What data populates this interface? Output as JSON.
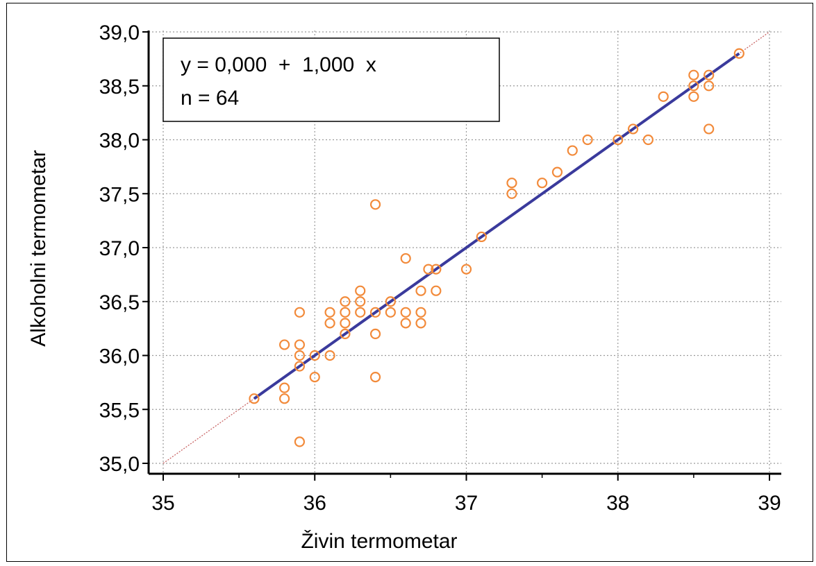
{
  "chart_data": {
    "type": "scatter",
    "xlabel": "Živin  termometar",
    "ylabel": "Alkoholni  termometar",
    "xlim": [
      35,
      39
    ],
    "ylim": [
      35.0,
      39.0
    ],
    "x_ticks": [
      "35",
      "36",
      "37",
      "38",
      "39"
    ],
    "y_ticks": [
      "35,0",
      "35,5",
      "36,0",
      "36,5",
      "37,0",
      "37,5",
      "38,0",
      "38,5",
      "39,0"
    ],
    "grid": true,
    "annotation": {
      "equation": "y = 0,000  +  1,000  x",
      "count": "n = 64"
    },
    "regression": {
      "intercept": 0.0,
      "slope": 1.0,
      "x_range": [
        35.6,
        38.8
      ]
    },
    "identity_line": {
      "x_range": [
        35,
        39
      ]
    },
    "points": [
      [
        35.6,
        35.6
      ],
      [
        35.8,
        36.1
      ],
      [
        35.8,
        35.7
      ],
      [
        35.8,
        35.6
      ],
      [
        35.9,
        36.4
      ],
      [
        35.9,
        36.1
      ],
      [
        35.9,
        36.0
      ],
      [
        35.9,
        35.9
      ],
      [
        35.9,
        35.2
      ],
      [
        36.0,
        36.0
      ],
      [
        36.0,
        35.8
      ],
      [
        36.1,
        36.4
      ],
      [
        36.1,
        36.3
      ],
      [
        36.1,
        36.0
      ],
      [
        36.2,
        36.5
      ],
      [
        36.2,
        36.4
      ],
      [
        36.2,
        36.3
      ],
      [
        36.2,
        36.2
      ],
      [
        36.3,
        36.6
      ],
      [
        36.3,
        36.5
      ],
      [
        36.3,
        36.4
      ],
      [
        36.4,
        37.4
      ],
      [
        36.4,
        36.4
      ],
      [
        36.4,
        36.2
      ],
      [
        36.4,
        35.8
      ],
      [
        36.5,
        36.5
      ],
      [
        36.5,
        36.4
      ],
      [
        36.6,
        36.9
      ],
      [
        36.6,
        36.4
      ],
      [
        36.6,
        36.3
      ],
      [
        36.7,
        36.6
      ],
      [
        36.7,
        36.4
      ],
      [
        36.7,
        36.3
      ],
      [
        36.75,
        36.8
      ],
      [
        36.8,
        36.8
      ],
      [
        36.8,
        36.6
      ],
      [
        37.0,
        36.8
      ],
      [
        37.1,
        37.1
      ],
      [
        37.3,
        37.6
      ],
      [
        37.3,
        37.5
      ],
      [
        37.5,
        37.6
      ],
      [
        37.6,
        37.7
      ],
      [
        37.7,
        37.9
      ],
      [
        37.8,
        38.0
      ],
      [
        38.0,
        38.0
      ],
      [
        38.1,
        38.1
      ],
      [
        38.2,
        38.0
      ],
      [
        38.3,
        38.4
      ],
      [
        38.5,
        38.6
      ],
      [
        38.5,
        38.5
      ],
      [
        38.5,
        38.4
      ],
      [
        38.6,
        38.6
      ],
      [
        38.6,
        38.5
      ],
      [
        38.6,
        38.1
      ],
      [
        38.8,
        38.8
      ]
    ],
    "colors": {
      "points": "#f28a3a",
      "regression": "#3a3a9c",
      "identity": "#c86464",
      "grid": "#9a9a9a"
    }
  }
}
